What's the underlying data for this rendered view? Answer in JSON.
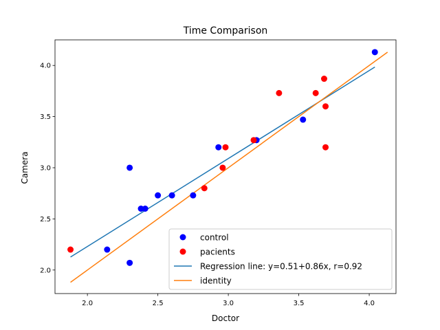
{
  "chart_data": {
    "type": "scatter",
    "title": "Time Comparison",
    "xlabel": "Doctor",
    "ylabel": "Camera",
    "xlim": [
      1.77,
      4.19
    ],
    "ylim": [
      1.77,
      4.25
    ],
    "xticks": [
      2.0,
      2.5,
      3.0,
      3.5,
      4.0
    ],
    "yticks": [
      2.0,
      2.5,
      3.0,
      3.5,
      4.0
    ],
    "xtick_labels": [
      "2.0",
      "2.5",
      "3.0",
      "3.5",
      "4.0"
    ],
    "ytick_labels": [
      "2.0",
      "2.5",
      "3.0",
      "3.5",
      "4.0"
    ],
    "grid": false,
    "legend_position": "lower-right",
    "series": [
      {
        "name": "control",
        "kind": "scatter",
        "color": "#0000ff",
        "points": [
          [
            2.14,
            2.2
          ],
          [
            2.3,
            3.0
          ],
          [
            2.3,
            2.07
          ],
          [
            2.38,
            2.6
          ],
          [
            2.41,
            2.6
          ],
          [
            2.5,
            2.73
          ],
          [
            2.6,
            2.73
          ],
          [
            2.75,
            2.73
          ],
          [
            2.93,
            3.2
          ],
          [
            3.2,
            3.27
          ],
          [
            3.53,
            3.47
          ],
          [
            4.04,
            4.13
          ]
        ]
      },
      {
        "name": "pacients",
        "kind": "scatter",
        "color": "#ff0000",
        "points": [
          [
            1.88,
            2.2
          ],
          [
            2.83,
            2.8
          ],
          [
            2.96,
            3.0
          ],
          [
            2.98,
            3.2
          ],
          [
            3.18,
            3.27
          ],
          [
            3.36,
            3.73
          ],
          [
            3.62,
            3.73
          ],
          [
            3.68,
            3.87
          ],
          [
            3.69,
            3.6
          ],
          [
            3.69,
            3.2
          ]
        ]
      },
      {
        "name": "Regression line: y=0.51+0.86x, r=0.92",
        "kind": "line",
        "color": "#1f77b4",
        "x_range": [
          1.88,
          4.04
        ],
        "intercept": 0.51,
        "slope": 0.86
      },
      {
        "name": "identity",
        "kind": "line",
        "color": "#ff7f0e",
        "points": [
          [
            1.88,
            1.88
          ],
          [
            4.13,
            4.13
          ]
        ]
      }
    ]
  }
}
